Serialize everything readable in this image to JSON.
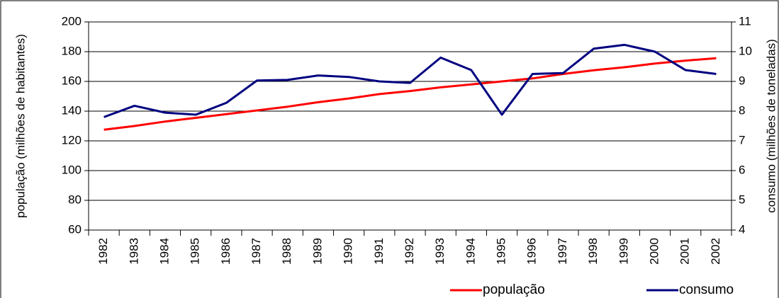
{
  "chart_data": {
    "type": "line",
    "categories": [
      "1982",
      "1983",
      "1984",
      "1985",
      "1986",
      "1987",
      "1988",
      "1989",
      "1990",
      "1991",
      "1992",
      "1993",
      "1994",
      "1995",
      "1996",
      "1997",
      "1998",
      "1999",
      "2000",
      "2001",
      "2002"
    ],
    "y_label": "população (milhões de habitantes)",
    "y2_label": "consumo (milhões de toneladas)",
    "ylim": [
      60,
      200
    ],
    "yticks": [
      60,
      80,
      100,
      120,
      140,
      160,
      180,
      200
    ],
    "y2lim": [
      4,
      11
    ],
    "y2ticks": [
      4,
      5,
      6,
      7,
      8,
      9,
      10,
      11
    ],
    "grid": true,
    "legend": "bottom",
    "series": [
      {
        "name": "população",
        "color": "#ff0000",
        "axis": "y",
        "values": [
          127.5,
          130,
          133,
          135.5,
          138,
          140.5,
          143,
          146,
          148.5,
          151.5,
          153.5,
          156,
          158,
          160,
          162,
          165,
          167.5,
          169.5,
          172,
          174,
          175.6
        ]
      },
      {
        "name": "consumo",
        "color": "#000080",
        "axis": "y2",
        "values": [
          7.8,
          8.18,
          7.95,
          7.88,
          8.28,
          9.03,
          9.05,
          9.2,
          9.15,
          9.0,
          8.95,
          9.8,
          9.38,
          7.88,
          9.25,
          9.28,
          10.1,
          10.23,
          10.0,
          9.38,
          9.25
        ]
      }
    ]
  }
}
